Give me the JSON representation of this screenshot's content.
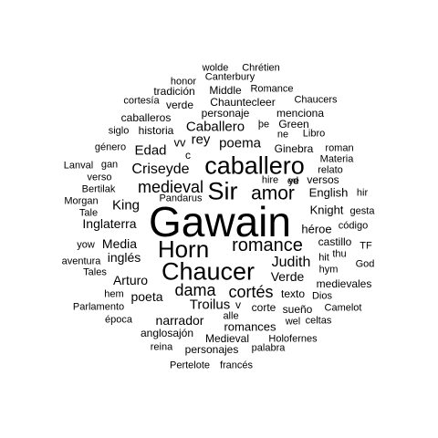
{
  "words": [
    {
      "text": "Gawain",
      "freq": 100
    },
    {
      "text": "Chaucer",
      "freq": 62
    },
    {
      "text": "Horn",
      "freq": 55
    },
    {
      "text": "caballero",
      "freq": 52
    },
    {
      "text": "Sir",
      "freq": 50
    },
    {
      "text": "amor",
      "freq": 40
    },
    {
      "text": "romance",
      "freq": 38
    },
    {
      "text": "medieval",
      "freq": 30
    },
    {
      "text": "cortés",
      "freq": 28
    },
    {
      "text": "dama",
      "freq": 28
    },
    {
      "text": "Criseyde",
      "freq": 25
    },
    {
      "text": "Judith",
      "freq": 25
    },
    {
      "text": "poema",
      "freq": 22
    },
    {
      "text": "rey",
      "freq": 22
    },
    {
      "text": "Caballero",
      "freq": 22
    },
    {
      "text": "Edad",
      "freq": 21
    },
    {
      "text": "Troilus",
      "freq": 21
    },
    {
      "text": "King",
      "freq": 21
    },
    {
      "text": "Verde",
      "freq": 21
    },
    {
      "text": "Inglaterra",
      "freq": 20
    },
    {
      "text": "Media",
      "freq": 20
    },
    {
      "text": "inglés",
      "freq": 20
    },
    {
      "text": "Arturo",
      "freq": 19
    },
    {
      "text": "narrador",
      "freq": 19
    },
    {
      "text": "poeta",
      "freq": 19
    },
    {
      "text": "romances",
      "freq": 18
    },
    {
      "text": "English",
      "freq": 17
    },
    {
      "text": "Knight",
      "freq": 17
    },
    {
      "text": "héroe",
      "freq": 17
    },
    {
      "text": "vv",
      "freq": 17
    },
    {
      "text": "historia",
      "freq": 16
    },
    {
      "text": "Ginebra",
      "freq": 15
    },
    {
      "text": "versos",
      "freq": 15
    },
    {
      "text": "texto",
      "freq": 15
    },
    {
      "text": "corte",
      "freq": 15
    },
    {
      "text": "castillo",
      "freq": 14
    },
    {
      "text": "Chauntecleer",
      "freq": 14
    },
    {
      "text": "Medieval",
      "freq": 14
    },
    {
      "text": "personajes",
      "freq": 13
    },
    {
      "text": "personaje",
      "freq": 13
    },
    {
      "text": "verde",
      "freq": 13
    },
    {
      "text": "medievales",
      "freq": 13
    },
    {
      "text": "sueño",
      "freq": 13
    },
    {
      "text": "anglosajón",
      "freq": 13
    },
    {
      "text": "Green",
      "freq": 13
    },
    {
      "text": "Middle",
      "freq": 13
    },
    {
      "text": "tradición",
      "freq": 12
    },
    {
      "text": "Materia",
      "freq": 12
    },
    {
      "text": "c",
      "freq": 12
    },
    {
      "text": "v",
      "freq": 12
    },
    {
      "text": "caballeros",
      "freq": 12
    },
    {
      "text": "menciona",
      "freq": 12
    },
    {
      "text": "Bertilak",
      "freq": 11
    },
    {
      "text": "gan",
      "freq": 11
    },
    {
      "text": "ye",
      "freq": 11
    },
    {
      "text": "þe",
      "freq": 11
    },
    {
      "text": "hit",
      "freq": 11
    },
    {
      "text": "Chaucers",
      "freq": 10
    },
    {
      "text": "género",
      "freq": 10
    },
    {
      "text": "siglo",
      "freq": 10
    },
    {
      "text": "cortesía",
      "freq": 10
    },
    {
      "text": "Romance",
      "freq": 10
    },
    {
      "text": "Canterbury",
      "freq": 10
    },
    {
      "text": "honor",
      "freq": 10
    },
    {
      "text": "wolde",
      "freq": 10
    },
    {
      "text": "Chrétien",
      "freq": 10
    },
    {
      "text": "Libro",
      "freq": 10
    },
    {
      "text": "ne",
      "freq": 10
    },
    {
      "text": "roman",
      "freq": 10
    },
    {
      "text": "relato",
      "freq": 10
    },
    {
      "text": "hire",
      "freq": 10
    },
    {
      "text": "ed",
      "freq": 10
    },
    {
      "text": "hir",
      "freq": 10
    },
    {
      "text": "gesta",
      "freq": 10
    },
    {
      "text": "código",
      "freq": 10
    },
    {
      "text": "thu",
      "freq": 10
    },
    {
      "text": "TF",
      "freq": 10
    },
    {
      "text": "God",
      "freq": 10
    },
    {
      "text": "hym",
      "freq": 10
    },
    {
      "text": "Dios",
      "freq": 10
    },
    {
      "text": "Camelot",
      "freq": 10
    },
    {
      "text": "celtas",
      "freq": 10
    },
    {
      "text": "wel",
      "freq": 10
    },
    {
      "text": "alle",
      "freq": 10
    },
    {
      "text": "Holofernes",
      "freq": 10
    },
    {
      "text": "palabra",
      "freq": 10
    },
    {
      "text": "reina",
      "freq": 10
    },
    {
      "text": "Pertelote",
      "freq": 10
    },
    {
      "text": "francés",
      "freq": 10
    },
    {
      "text": "época",
      "freq": 10
    },
    {
      "text": "Parlamento",
      "freq": 10
    },
    {
      "text": "hem",
      "freq": 10
    },
    {
      "text": "Tales",
      "freq": 10
    },
    {
      "text": "aventura",
      "freq": 10
    },
    {
      "text": "yow",
      "freq": 10
    },
    {
      "text": "Tale",
      "freq": 10
    },
    {
      "text": "Morgan",
      "freq": 10
    },
    {
      "text": "verso",
      "freq": 10
    },
    {
      "text": "Lanval",
      "freq": 10
    },
    {
      "text": "Pandarus",
      "freq": 10
    }
  ]
}
